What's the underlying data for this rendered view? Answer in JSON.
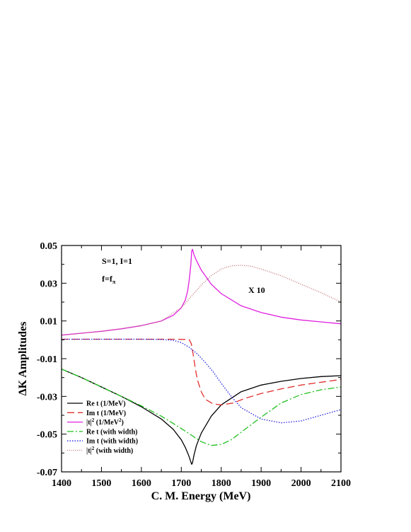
{
  "chart_data": {
    "type": "line",
    "xlabel": "C. M. Energy  (MeV)",
    "ylabel": "ΔK Amplitudes",
    "xlim": [
      1400,
      2100
    ],
    "ylim": [
      -0.07,
      0.05
    ],
    "xticks": [
      "1400",
      "1500",
      "1600",
      "1700",
      "1800",
      "1900",
      "2000",
      "2100"
    ],
    "yticks": [
      "0.05",
      "0.03",
      "0.01",
      "-0.01",
      "-0.03",
      "-0.05",
      "-0.07"
    ],
    "grid": false,
    "legend_position": "bottom-left",
    "annotations": {
      "quantum_numbers": "S=1, I=1",
      "coupling_base": "f=f",
      "coupling_sub": "π",
      "scale_factor": "X 10"
    },
    "series": [
      {
        "name": "Re t (1/MeV)",
        "legend_main": "Re t (1/MeV)",
        "legend_sup": "",
        "legend_tail": "",
        "color": "#000000",
        "dash": "solid",
        "x": [
          1400,
          1450,
          1500,
          1550,
          1600,
          1650,
          1680,
          1700,
          1710,
          1716,
          1720,
          1724,
          1726,
          1728,
          1732,
          1738,
          1750,
          1775,
          1800,
          1850,
          1900,
          1950,
          2000,
          2050,
          2100
        ],
        "y": [
          -0.0155,
          -0.02,
          -0.025,
          -0.03,
          -0.0355,
          -0.042,
          -0.0475,
          -0.053,
          -0.057,
          -0.06,
          -0.0622,
          -0.0648,
          -0.066,
          -0.0652,
          -0.061,
          -0.056,
          -0.0495,
          -0.0405,
          -0.0345,
          -0.0275,
          -0.024,
          -0.022,
          -0.0205,
          -0.0195,
          -0.019
        ]
      },
      {
        "name": "Im t (1/MeV)",
        "legend_main": "Im t (1/MeV)",
        "legend_sup": "",
        "legend_tail": "",
        "color": "#e0302f",
        "dash": "long-dash",
        "x": [
          1400,
          1500,
          1600,
          1680,
          1710,
          1720,
          1725,
          1730,
          1735,
          1740,
          1750,
          1760,
          1780,
          1800,
          1830,
          1860,
          1900,
          1950,
          2000,
          2050,
          2100
        ],
        "y": [
          0.0003,
          0.0003,
          0.0003,
          0.0003,
          0.0002,
          0.0,
          -0.002,
          -0.008,
          -0.015,
          -0.021,
          -0.0275,
          -0.0315,
          -0.034,
          -0.0345,
          -0.0335,
          -0.031,
          -0.0285,
          -0.026,
          -0.024,
          -0.0225,
          -0.021
        ]
      },
      {
        "name": "|t|2 (1/MeV2)",
        "legend_main": "|t|",
        "legend_sup": "2",
        "legend_tail": " (1/MeV",
        "legend_sup2": "2",
        "legend_end": ")",
        "color": "#e020e0",
        "dash": "solid",
        "x": [
          1400,
          1450,
          1500,
          1550,
          1600,
          1650,
          1680,
          1700,
          1710,
          1716,
          1720,
          1724,
          1726,
          1728,
          1732,
          1738,
          1750,
          1775,
          1800,
          1850,
          1900,
          1950,
          2000,
          2050,
          2100
        ],
        "y": [
          0.0025,
          0.0035,
          0.0045,
          0.0058,
          0.0075,
          0.01,
          0.013,
          0.017,
          0.021,
          0.026,
          0.032,
          0.04,
          0.047,
          0.048,
          0.045,
          0.042,
          0.037,
          0.0295,
          0.0245,
          0.018,
          0.0145,
          0.012,
          0.0105,
          0.0095,
          0.0085
        ]
      },
      {
        "name": "Re t (with width)",
        "legend_main": "Re t (with width)",
        "legend_sup": "",
        "legend_tail": "",
        "color": "#20c020",
        "dash": "dash-dot",
        "x": [
          1400,
          1450,
          1500,
          1550,
          1600,
          1650,
          1700,
          1725,
          1750,
          1775,
          1800,
          1825,
          1850,
          1900,
          1950,
          2000,
          2050,
          2100
        ],
        "y": [
          -0.0155,
          -0.02,
          -0.025,
          -0.03,
          -0.035,
          -0.0405,
          -0.047,
          -0.0505,
          -0.054,
          -0.056,
          -0.0555,
          -0.053,
          -0.049,
          -0.041,
          -0.0335,
          -0.029,
          -0.0265,
          -0.025
        ]
      },
      {
        "name": "Im t (with width)",
        "legend_main": "Im t (with width)",
        "legend_sup": "",
        "legend_tail": "",
        "color": "#2020e0",
        "dash": "dotted",
        "x": [
          1400,
          1500,
          1600,
          1650,
          1680,
          1700,
          1720,
          1740,
          1760,
          1780,
          1800,
          1825,
          1850,
          1900,
          1950,
          2000,
          2050,
          2100
        ],
        "y": [
          0.0003,
          0.0003,
          0.0003,
          0.0002,
          -0.0003,
          -0.0015,
          -0.004,
          -0.0075,
          -0.012,
          -0.017,
          -0.023,
          -0.03,
          -0.036,
          -0.042,
          -0.044,
          -0.043,
          -0.04,
          -0.037
        ]
      },
      {
        "name": "|t|2 (with width)",
        "legend_main": "|t|",
        "legend_sup": "2",
        "legend_tail": " (with width)",
        "color": "#c07070",
        "dash": "fine-dotted",
        "x": [
          1400,
          1500,
          1600,
          1650,
          1700,
          1725,
          1750,
          1775,
          1800,
          1825,
          1850,
          1875,
          1900,
          1950,
          2000,
          2050,
          2100
        ],
        "y": [
          0.0025,
          0.0045,
          0.0075,
          0.01,
          0.017,
          0.023,
          0.029,
          0.034,
          0.0375,
          0.0392,
          0.0395,
          0.039,
          0.0375,
          0.034,
          0.0295,
          0.025,
          0.02
        ]
      }
    ]
  }
}
